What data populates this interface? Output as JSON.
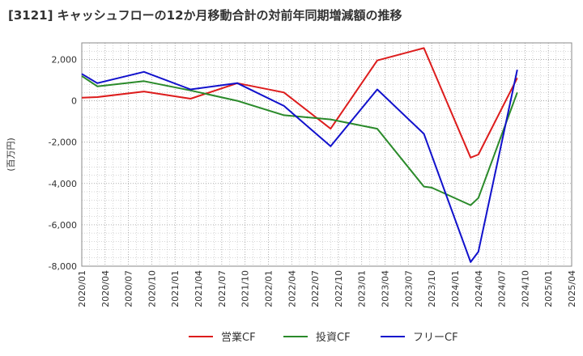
{
  "chart_data": {
    "type": "line",
    "title": "[3121]  キャッシュフローの12か月移動合計の対前年同期増減額の推移",
    "xlabel": "",
    "ylabel": "(百万円)",
    "ylim": [
      -8000,
      2800
    ],
    "y_ticks": [
      2000,
      0,
      -2000,
      -4000,
      -6000,
      -8000
    ],
    "y_tick_labels": [
      "2,000",
      "0",
      "-2,000",
      "-4,000",
      "-6,000",
      "-8,000"
    ],
    "x_range": [
      "2020-01",
      "2025-04"
    ],
    "x_ticks": [
      "2020/01",
      "2020/04",
      "2020/07",
      "2020/10",
      "2021/01",
      "2021/04",
      "2021/07",
      "2021/10",
      "2022/01",
      "2022/04",
      "2022/07",
      "2022/10",
      "2023/01",
      "2023/04",
      "2023/07",
      "2023/10",
      "2024/01",
      "2024/04",
      "2024/07",
      "2024/10",
      "2025/01",
      "2025/04"
    ],
    "grid": true,
    "legend_position": "bottom",
    "series": [
      {
        "name": "営業CF",
        "color": "#dd1c1c",
        "points": [
          [
            "2020-01",
            150
          ],
          [
            "2020-03",
            180
          ],
          [
            "2020-09",
            450
          ],
          [
            "2021-03",
            100
          ],
          [
            "2021-09",
            850
          ],
          [
            "2022-03",
            400
          ],
          [
            "2022-09",
            -1350
          ],
          [
            "2023-03",
            1950
          ],
          [
            "2023-09",
            2550
          ],
          [
            "2024-03",
            -2750
          ],
          [
            "2024-04",
            -2600
          ],
          [
            "2024-09",
            1100
          ]
        ]
      },
      {
        "name": "投資CF",
        "color": "#2a8a2a",
        "points": [
          [
            "2020-01",
            1200
          ],
          [
            "2020-03",
            700
          ],
          [
            "2020-09",
            950
          ],
          [
            "2021-03",
            500
          ],
          [
            "2021-09",
            0
          ],
          [
            "2022-03",
            -700
          ],
          [
            "2022-09",
            -900
          ],
          [
            "2023-03",
            -1350
          ],
          [
            "2023-09",
            -4150
          ],
          [
            "2023-10",
            -4200
          ],
          [
            "2024-03",
            -5050
          ],
          [
            "2024-04",
            -4700
          ],
          [
            "2024-09",
            400
          ]
        ]
      },
      {
        "name": "フリーCF",
        "color": "#1111cc",
        "points": [
          [
            "2020-01",
            1300
          ],
          [
            "2020-03",
            850
          ],
          [
            "2020-09",
            1400
          ],
          [
            "2021-03",
            550
          ],
          [
            "2021-09",
            850
          ],
          [
            "2022-03",
            -250
          ],
          [
            "2022-09",
            -2200
          ],
          [
            "2023-03",
            550
          ],
          [
            "2023-09",
            -1600
          ],
          [
            "2024-03",
            -7800
          ],
          [
            "2024-04",
            -7300
          ],
          [
            "2024-09",
            1500
          ]
        ]
      }
    ]
  }
}
